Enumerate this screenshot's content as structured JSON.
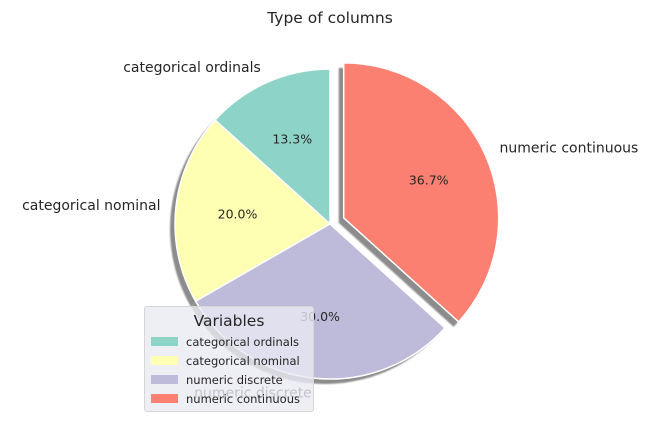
{
  "chart_data": {
    "type": "pie",
    "title": "Type of columns",
    "categories": [
      "categorical ordinals",
      "categorical nominal",
      "numeric discrete",
      "numeric continuous"
    ],
    "values": [
      13.3,
      20.0,
      30.0,
      36.7
    ],
    "percent_labels": [
      "13.3%",
      "20.0%",
      "30.0%",
      "36.7%"
    ],
    "colors": [
      "#8dd3c7",
      "#ffffb3",
      "#bebada",
      "#fb8072"
    ],
    "exploded": [
      false,
      false,
      false,
      true
    ],
    "shadow": true,
    "start_angle": 90,
    "direction": "counterclockwise",
    "legend": {
      "title": "Variables",
      "placement": "lower-left",
      "entries": [
        "categorical ordinals",
        "categorical nominal",
        "numeric discrete",
        "numeric continuous"
      ]
    }
  }
}
